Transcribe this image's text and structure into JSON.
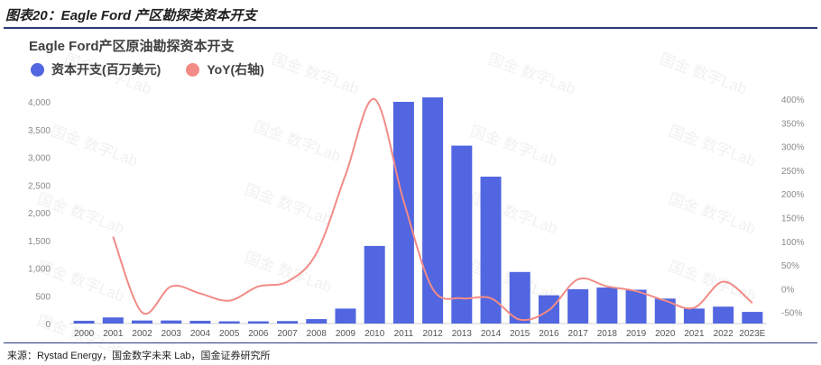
{
  "figure_title": "图表20：Eagle Ford 产区勘探类资本开支",
  "source_note": "来源：Rystad Energy，国金数字未来 Lab，国金证券研究所",
  "watermark": "国金 数字Lab",
  "colors": {
    "bar": "#5166e0",
    "line": "#f28b86",
    "axis_text": "#8a8a8a",
    "title_rule": "#2a3a7a"
  },
  "chart_data": {
    "type": "bar",
    "title": "Eagle Ford产区原油勘探资本开支",
    "legend_position": "top-left",
    "grid": false,
    "categories": [
      "2000",
      "2001",
      "2002",
      "2003",
      "2004",
      "2005",
      "2006",
      "2007",
      "2008",
      "2009",
      "2010",
      "2011",
      "2012",
      "2013",
      "2014",
      "2015",
      "2016",
      "2017",
      "2018",
      "2019",
      "2020",
      "2021",
      "2022",
      "2023E"
    ],
    "y_ticks": [
      "0",
      "500",
      "1,000",
      "1,500",
      "2,000",
      "2,500",
      "3,000",
      "3,500",
      "4,000"
    ],
    "ylim": [
      0,
      4000
    ],
    "y2_ticks": [
      "-50%",
      "0%",
      "50%",
      "100%",
      "150%",
      "200%",
      "250%",
      "300%",
      "350%",
      "400%"
    ],
    "y2lim": [
      -60,
      400
    ],
    "series": [
      {
        "name": "资本开支(百万美元)",
        "type": "bar",
        "axis": "left",
        "values": [
          50,
          110,
          55,
          55,
          50,
          40,
          40,
          45,
          80,
          270,
          1400,
          4000,
          4080,
          3210,
          2650,
          930,
          510,
          620,
          650,
          610,
          450,
          270,
          305,
          210
        ]
      },
      {
        "name": "YoY(右轴)",
        "type": "line",
        "axis": "right",
        "values": [
          null,
          110,
          -50,
          5,
          -10,
          -25,
          5,
          15,
          75,
          240,
          400,
          185,
          0,
          -20,
          -20,
          -65,
          -45,
          20,
          5,
          -5,
          -25,
          -40,
          15,
          -30
        ]
      }
    ]
  }
}
